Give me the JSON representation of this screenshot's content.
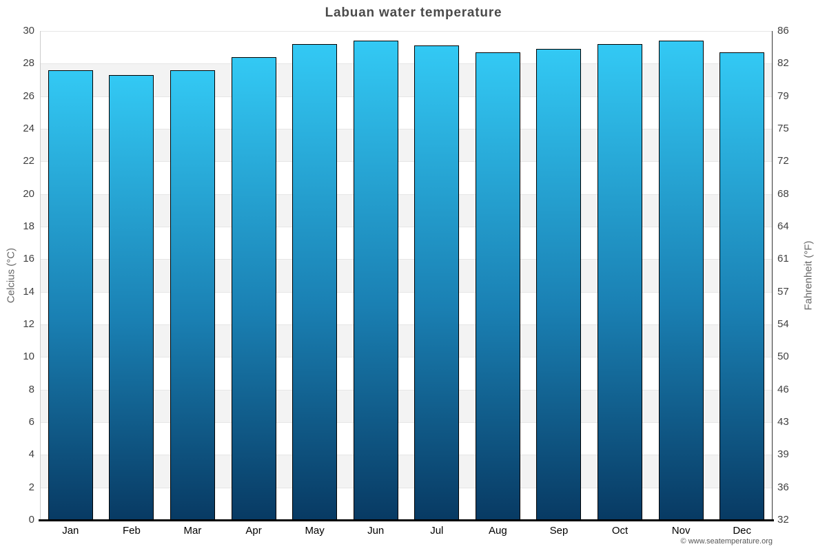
{
  "chart_data": {
    "type": "bar",
    "title": "Labuan water temperature",
    "categories": [
      "Jan",
      "Feb",
      "Mar",
      "Apr",
      "May",
      "Jun",
      "Jul",
      "Aug",
      "Sep",
      "Oct",
      "Nov",
      "Dec"
    ],
    "values": [
      27.6,
      27.3,
      27.6,
      28.4,
      29.2,
      29.4,
      29.1,
      28.7,
      28.9,
      29.2,
      29.4,
      28.7
    ],
    "unit": "°C",
    "ylabel_left": "Celcius (°C)",
    "ylabel_right": "Fahrenheit (°F)",
    "ylim": [
      0,
      30
    ],
    "celsius_ticks": [
      0,
      2,
      4,
      6,
      8,
      10,
      12,
      14,
      16,
      18,
      20,
      22,
      24,
      26,
      28,
      30
    ],
    "fahrenheit_tick_labels": [
      "32",
      "36",
      "39",
      "43",
      "46",
      "50",
      "54",
      "57",
      "61",
      "64",
      "68",
      "72",
      "75",
      "79",
      "82",
      "86"
    ],
    "grid": "on",
    "legend": "none",
    "watermark": "© www.seatemperature.org",
    "colors": {
      "bar_gradient_top": "#33c9f4",
      "bar_gradient_mid": "#1a80b3",
      "bar_gradient_bottom": "#083a63",
      "bar_border": "#000000",
      "band": "#f3f3f3",
      "gridline": "#e6e6e6",
      "title_text": "#4a4a4a",
      "tick_text": "#404040",
      "month_text": "#000000",
      "axis_title_text": "#666666"
    }
  }
}
